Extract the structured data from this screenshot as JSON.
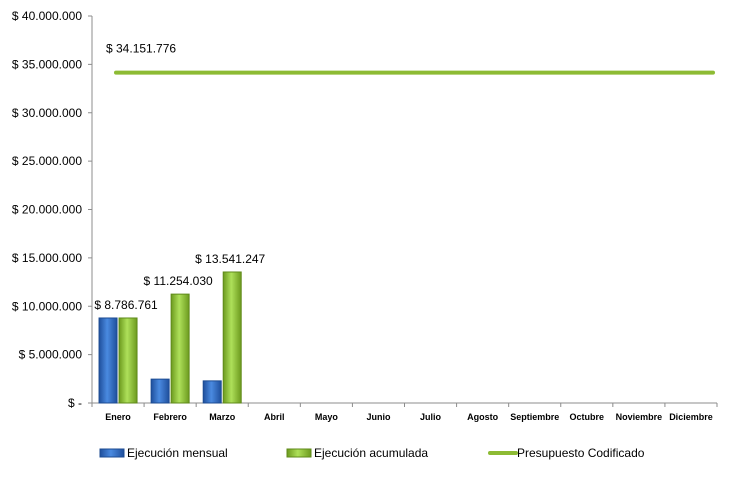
{
  "chart_data": {
    "type": "bar",
    "categories": [
      "Enero",
      "Febrero",
      "Marzo",
      "Abril",
      "Mayo",
      "Junio",
      "Julio",
      "Agosto",
      "Septiembre",
      "Octubre",
      "Noviembre",
      "Diciembre"
    ],
    "series": [
      {
        "name": "Ejecución mensual",
        "type": "bar",
        "color": "#2f6fd0",
        "values": [
          8786761,
          2467269,
          2287217,
          null,
          null,
          null,
          null,
          null,
          null,
          null,
          null,
          null
        ]
      },
      {
        "name": "Ejecución acumulada",
        "type": "bar",
        "color": "#8dbb34",
        "values": [
          8786761,
          11254030,
          13541247,
          null,
          null,
          null,
          null,
          null,
          null,
          null,
          null,
          null
        ]
      },
      {
        "name": "Presupuesto Codificado",
        "type": "line",
        "color": "#8dbb34",
        "values": [
          34151776,
          34151776,
          34151776,
          34151776,
          34151776,
          34151776,
          34151776,
          34151776,
          34151776,
          34151776,
          34151776,
          34151776
        ]
      }
    ],
    "data_labels": [
      {
        "series": 1,
        "index": 0,
        "text": "$ 8.786.761"
      },
      {
        "series": 1,
        "index": 1,
        "text": "$ 11.254.030"
      },
      {
        "series": 1,
        "index": 2,
        "text": "$ 13.541.247"
      },
      {
        "series": 2,
        "index": 0,
        "text": "$ 34.151.776"
      }
    ],
    "ylim": [
      0,
      40000000
    ],
    "yticks": [
      0,
      5000000,
      10000000,
      15000000,
      20000000,
      25000000,
      30000000,
      35000000,
      40000000
    ],
    "ytick_labels": [
      "$ -",
      "$ 5.000.000",
      "$ 10.000.000",
      "$ 15.000.000",
      "$ 20.000.000",
      "$ 25.000.000",
      "$ 30.000.000",
      "$ 35.000.000",
      "$ 40.000.000"
    ],
    "grid": false,
    "legend_position": "bottom"
  }
}
